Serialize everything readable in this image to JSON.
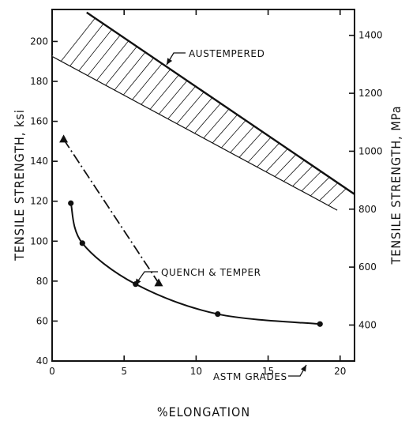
{
  "chart_data": {
    "type": "line",
    "xlabel": "%ELONGATION",
    "ylabel": "TENSILE STRENGTH, ksi",
    "ylabel_right": "TENSILE STRENGTH, MPa",
    "xlim": [
      0,
      21
    ],
    "ylim": [
      40,
      216
    ],
    "ylim_right": [
      275.8,
      1489.3
    ],
    "x_ticks": [
      "0",
      "5",
      "10",
      "15",
      "20"
    ],
    "y_ticks": [
      "40",
      "60",
      "80",
      "100",
      "120",
      "140",
      "160",
      "180",
      "200"
    ],
    "y_ticks_right": [
      "400",
      "600",
      "800",
      "1000",
      "1200",
      "1400"
    ],
    "series": [
      {
        "name": "AUSTEMPERED",
        "style": "hatched band",
        "upper_edge": [
          {
            "x": 2.4,
            "y": 214.5
          },
          {
            "x": 21.0,
            "y": 123.5
          }
        ],
        "lower_edge": [
          {
            "x": 0.0,
            "y": 192.5
          },
          {
            "x": 19.8,
            "y": 115.5
          }
        ]
      },
      {
        "name": "QUENCH & TEMPER",
        "style": "dash-dot with triangle markers",
        "points": [
          {
            "x": 0.8,
            "y": 151
          },
          {
            "x": 7.4,
            "y": 79
          }
        ]
      },
      {
        "name": "ASTM GRADES",
        "style": "solid curve with circle markers",
        "points": [
          {
            "x": 1.3,
            "y": 119
          },
          {
            "x": 2.1,
            "y": 99
          },
          {
            "x": 5.8,
            "y": 78.5
          },
          {
            "x": 11.5,
            "y": 63.5
          },
          {
            "x": 18.6,
            "y": 58.5
          }
        ]
      }
    ],
    "annotations": [
      "AUSTEMPERED",
      "QUENCH & TEMPER",
      "ASTM GRADES"
    ]
  }
}
